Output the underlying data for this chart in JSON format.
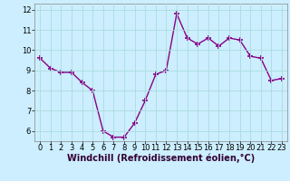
{
  "x": [
    0,
    1,
    2,
    3,
    4,
    5,
    6,
    7,
    8,
    9,
    10,
    11,
    12,
    13,
    14,
    15,
    16,
    17,
    18,
    19,
    20,
    21,
    22,
    23
  ],
  "y": [
    9.6,
    9.1,
    8.9,
    8.9,
    8.4,
    8.0,
    6.0,
    5.7,
    5.7,
    6.4,
    7.5,
    8.8,
    9.0,
    11.8,
    10.6,
    10.3,
    10.6,
    10.2,
    10.6,
    10.5,
    9.7,
    9.6,
    8.5,
    8.6
  ],
  "line_color": "#880088",
  "marker": "+",
  "marker_size": 4,
  "marker_lw": 1.2,
  "bg_color": "#cceeff",
  "grid_color": "#aadddd",
  "xlabel": "Windchill (Refroidissement éolien,°C)",
  "ylim": [
    5.5,
    12.3
  ],
  "xlim": [
    -0.5,
    23.5
  ],
  "yticks": [
    6,
    7,
    8,
    9,
    10,
    11,
    12
  ],
  "xticks": [
    0,
    1,
    2,
    3,
    4,
    5,
    6,
    7,
    8,
    9,
    10,
    11,
    12,
    13,
    14,
    15,
    16,
    17,
    18,
    19,
    20,
    21,
    22,
    23
  ],
  "tick_fontsize": 6.0,
  "xlabel_fontsize": 7.0,
  "line_width": 1.0,
  "spine_color": "#888888"
}
